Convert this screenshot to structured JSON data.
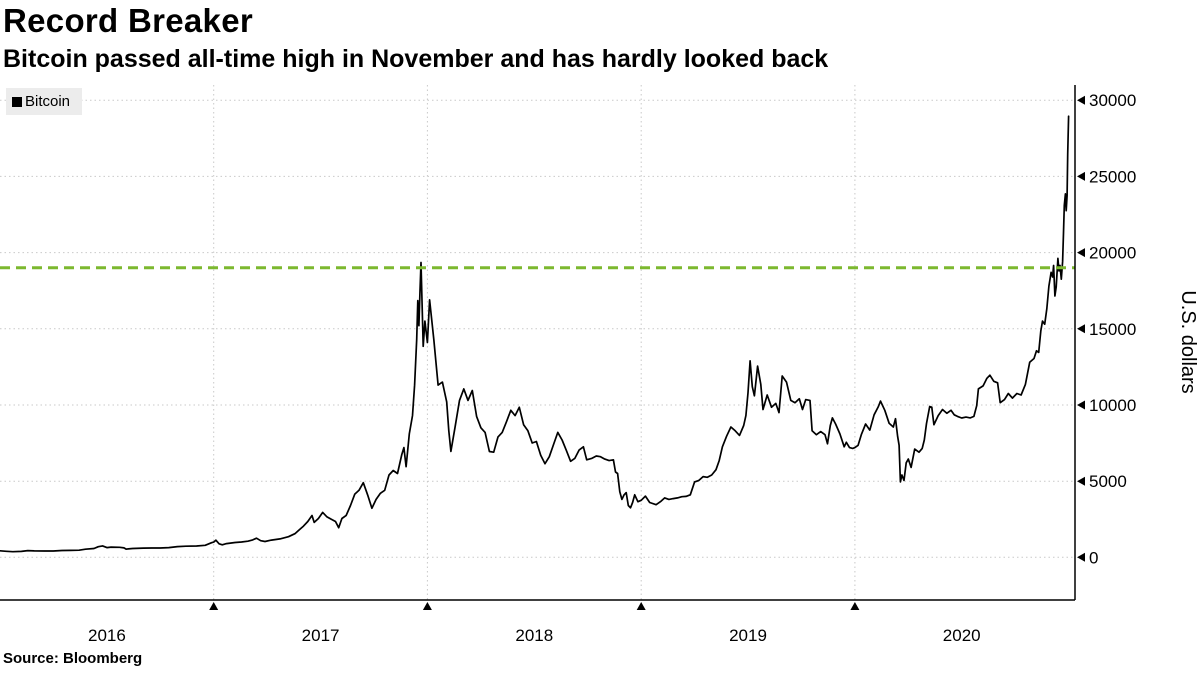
{
  "header": {
    "title": "Record Breaker",
    "subtitle": "Bitcoin passed all-time high in November and has hardly looked back"
  },
  "legend": {
    "label": "Bitcoin",
    "swatch_color": "#000000"
  },
  "source": "Source: Bloomberg",
  "chart_data": {
    "type": "line",
    "title": "Record Breaker",
    "subtitle": "Bitcoin passed all-time high in November and has hardly looked back",
    "ylabel": "U.S. dollars",
    "legend_entries": [
      "Bitcoin"
    ],
    "legend_position": "top-left",
    "grid": true,
    "grid_color": "#c9c9c9",
    "line_color": "#000000",
    "xlim": [
      2016.0,
      2021.03
    ],
    "ylim": [
      -2800,
      31000
    ],
    "y_ticks": [
      0,
      5000,
      10000,
      15000,
      20000,
      25000,
      30000
    ],
    "x_ticks": {
      "labels": [
        "2016",
        "2017",
        "2018",
        "2019",
        "2020"
      ],
      "label_positions": [
        2016.5,
        2017.5,
        2018.5,
        2019.5,
        2020.5
      ],
      "gridline_positions": [
        2017,
        2018,
        2019,
        2020
      ]
    },
    "reference_line": {
      "value": 19000,
      "color": "#7cb82f",
      "style": "dashed"
    },
    "series": [
      {
        "name": "Bitcoin",
        "points": [
          [
            2016.0,
            430
          ],
          [
            2016.03,
            395
          ],
          [
            2016.06,
            372
          ],
          [
            2016.1,
            392
          ],
          [
            2016.13,
            440
          ],
          [
            2016.16,
            420
          ],
          [
            2016.21,
            416
          ],
          [
            2016.25,
            418
          ],
          [
            2016.29,
            448
          ],
          [
            2016.33,
            455
          ],
          [
            2016.37,
            470
          ],
          [
            2016.4,
            532
          ],
          [
            2016.44,
            578
          ],
          [
            2016.46,
            700
          ],
          [
            2016.48,
            752
          ],
          [
            2016.5,
            640
          ],
          [
            2016.52,
            672
          ],
          [
            2016.56,
            658
          ],
          [
            2016.58,
            618
          ],
          [
            2016.59,
            540
          ],
          [
            2016.62,
            578
          ],
          [
            2016.67,
            607
          ],
          [
            2016.71,
            612
          ],
          [
            2016.75,
            616
          ],
          [
            2016.79,
            640
          ],
          [
            2016.83,
            702
          ],
          [
            2016.87,
            732
          ],
          [
            2016.92,
            747
          ],
          [
            2016.96,
            792
          ],
          [
            2016.99,
            962
          ],
          [
            2017.0,
            998
          ],
          [
            2017.01,
            1128
          ],
          [
            2017.025,
            888
          ],
          [
            2017.04,
            820
          ],
          [
            2017.06,
            902
          ],
          [
            2017.1,
            972
          ],
          [
            2017.13,
            1008
          ],
          [
            2017.16,
            1058
          ],
          [
            2017.18,
            1132
          ],
          [
            2017.2,
            1255
          ],
          [
            2017.22,
            1095
          ],
          [
            2017.24,
            1038
          ],
          [
            2017.27,
            1132
          ],
          [
            2017.31,
            1212
          ],
          [
            2017.35,
            1352
          ],
          [
            2017.38,
            1552
          ],
          [
            2017.4,
            1802
          ],
          [
            2017.42,
            2052
          ],
          [
            2017.44,
            2352
          ],
          [
            2017.46,
            2748
          ],
          [
            2017.47,
            2292
          ],
          [
            2017.49,
            2552
          ],
          [
            2017.51,
            2948
          ],
          [
            2017.53,
            2652
          ],
          [
            2017.55,
            2498
          ],
          [
            2017.57,
            2352
          ],
          [
            2017.585,
            1948
          ],
          [
            2017.6,
            2552
          ],
          [
            2017.62,
            2752
          ],
          [
            2017.64,
            3402
          ],
          [
            2017.66,
            4152
          ],
          [
            2017.68,
            4402
          ],
          [
            2017.7,
            4898
          ],
          [
            2017.72,
            4102
          ],
          [
            2017.74,
            3228
          ],
          [
            2017.76,
            3802
          ],
          [
            2017.78,
            4202
          ],
          [
            2017.8,
            4398
          ],
          [
            2017.82,
            5402
          ],
          [
            2017.84,
            5698
          ],
          [
            2017.86,
            5502
          ],
          [
            2017.88,
            6748
          ],
          [
            2017.89,
            7202
          ],
          [
            2017.9,
            5948
          ],
          [
            2017.915,
            8102
          ],
          [
            2017.93,
            9302
          ],
          [
            2017.94,
            11302
          ],
          [
            2017.95,
            14302
          ],
          [
            2017.955,
            16852
          ],
          [
            2017.96,
            15202
          ],
          [
            2017.965,
            17502
          ],
          [
            2017.97,
            19348
          ],
          [
            2017.975,
            16602
          ],
          [
            2017.98,
            13852
          ],
          [
            2017.988,
            15502
          ],
          [
            2018.0,
            14102
          ],
          [
            2018.01,
            16902
          ],
          [
            2018.03,
            14302
          ],
          [
            2018.05,
            11302
          ],
          [
            2018.07,
            11502
          ],
          [
            2018.09,
            10202
          ],
          [
            2018.1,
            8302
          ],
          [
            2018.11,
            6952
          ],
          [
            2018.13,
            8602
          ],
          [
            2018.15,
            10302
          ],
          [
            2018.17,
            11052
          ],
          [
            2018.19,
            10302
          ],
          [
            2018.21,
            10952
          ],
          [
            2018.23,
            9252
          ],
          [
            2018.25,
            8502
          ],
          [
            2018.27,
            8202
          ],
          [
            2018.29,
            6948
          ],
          [
            2018.31,
            6902
          ],
          [
            2018.33,
            7902
          ],
          [
            2018.35,
            8202
          ],
          [
            2018.37,
            8902
          ],
          [
            2018.39,
            9652
          ],
          [
            2018.41,
            9302
          ],
          [
            2018.43,
            9848
          ],
          [
            2018.45,
            8702
          ],
          [
            2018.47,
            8302
          ],
          [
            2018.49,
            7502
          ],
          [
            2018.51,
            7602
          ],
          [
            2018.53,
            6702
          ],
          [
            2018.55,
            6148
          ],
          [
            2018.57,
            6602
          ],
          [
            2018.59,
            7402
          ],
          [
            2018.61,
            8202
          ],
          [
            2018.63,
            7702
          ],
          [
            2018.65,
            7002
          ],
          [
            2018.67,
            6302
          ],
          [
            2018.69,
            6502
          ],
          [
            2018.71,
            7052
          ],
          [
            2018.73,
            7252
          ],
          [
            2018.745,
            6402
          ],
          [
            2018.77,
            6502
          ],
          [
            2018.79,
            6648
          ],
          [
            2018.81,
            6602
          ],
          [
            2018.83,
            6448
          ],
          [
            2018.85,
            6348
          ],
          [
            2018.87,
            6402
          ],
          [
            2018.88,
            5602
          ],
          [
            2018.89,
            5502
          ],
          [
            2018.9,
            4302
          ],
          [
            2018.91,
            3802
          ],
          [
            2018.92,
            4102
          ],
          [
            2018.93,
            4252
          ],
          [
            2018.94,
            3402
          ],
          [
            2018.95,
            3248
          ],
          [
            2018.96,
            3602
          ],
          [
            2018.97,
            4102
          ],
          [
            2018.985,
            3652
          ],
          [
            2019.0,
            3742
          ],
          [
            2019.02,
            4022
          ],
          [
            2019.04,
            3602
          ],
          [
            2019.07,
            3452
          ],
          [
            2019.09,
            3652
          ],
          [
            2019.11,
            3902
          ],
          [
            2019.13,
            3802
          ],
          [
            2019.15,
            3852
          ],
          [
            2019.17,
            3902
          ],
          [
            2019.19,
            3982
          ],
          [
            2019.21,
            4002
          ],
          [
            2019.23,
            4102
          ],
          [
            2019.25,
            4952
          ],
          [
            2019.27,
            5052
          ],
          [
            2019.29,
            5302
          ],
          [
            2019.31,
            5252
          ],
          [
            2019.33,
            5402
          ],
          [
            2019.35,
            5752
          ],
          [
            2019.365,
            6352
          ],
          [
            2019.38,
            7252
          ],
          [
            2019.4,
            7952
          ],
          [
            2019.42,
            8552
          ],
          [
            2019.44,
            8302
          ],
          [
            2019.46,
            8002
          ],
          [
            2019.48,
            8652
          ],
          [
            2019.49,
            9302
          ],
          [
            2019.5,
            10802
          ],
          [
            2019.51,
            12902
          ],
          [
            2019.52,
            11202
          ],
          [
            2019.53,
            10602
          ],
          [
            2019.545,
            12552
          ],
          [
            2019.56,
            11352
          ],
          [
            2019.57,
            9702
          ],
          [
            2019.59,
            10652
          ],
          [
            2019.61,
            9852
          ],
          [
            2019.63,
            10102
          ],
          [
            2019.645,
            9502
          ],
          [
            2019.66,
            11902
          ],
          [
            2019.68,
            11502
          ],
          [
            2019.7,
            10302
          ],
          [
            2019.72,
            10152
          ],
          [
            2019.74,
            10402
          ],
          [
            2019.755,
            9702
          ],
          [
            2019.77,
            10352
          ],
          [
            2019.79,
            10302
          ],
          [
            2019.8,
            8302
          ],
          [
            2019.82,
            8052
          ],
          [
            2019.84,
            8252
          ],
          [
            2019.86,
            8052
          ],
          [
            2019.872,
            7452
          ],
          [
            2019.885,
            8652
          ],
          [
            2019.895,
            9152
          ],
          [
            2019.91,
            8752
          ],
          [
            2019.93,
            8102
          ],
          [
            2019.95,
            7252
          ],
          [
            2019.96,
            7552
          ],
          [
            2019.975,
            7202
          ],
          [
            2019.99,
            7152
          ],
          [
            2020.0,
            7202
          ],
          [
            2020.015,
            7352
          ],
          [
            2020.03,
            8052
          ],
          [
            2020.05,
            8752
          ],
          [
            2020.07,
            8352
          ],
          [
            2020.09,
            9352
          ],
          [
            2020.11,
            9902
          ],
          [
            2020.12,
            10252
          ],
          [
            2020.14,
            9652
          ],
          [
            2020.16,
            8802
          ],
          [
            2020.18,
            8552
          ],
          [
            2020.19,
            9102
          ],
          [
            2020.2,
            7952
          ],
          [
            2020.207,
            7352
          ],
          [
            2020.213,
            4952
          ],
          [
            2020.22,
            5402
          ],
          [
            2020.23,
            5052
          ],
          [
            2020.24,
            6202
          ],
          [
            2020.25,
            6452
          ],
          [
            2020.263,
            5902
          ],
          [
            2020.28,
            7102
          ],
          [
            2020.3,
            6902
          ],
          [
            2020.315,
            7152
          ],
          [
            2020.325,
            7702
          ],
          [
            2020.335,
            8782
          ],
          [
            2020.35,
            9902
          ],
          [
            2020.36,
            9852
          ],
          [
            2020.37,
            8702
          ],
          [
            2020.39,
            9302
          ],
          [
            2020.41,
            9702
          ],
          [
            2020.43,
            9452
          ],
          [
            2020.45,
            9652
          ],
          [
            2020.465,
            9352
          ],
          [
            2020.48,
            9252
          ],
          [
            2020.5,
            9142
          ],
          [
            2020.52,
            9202
          ],
          [
            2020.54,
            9152
          ],
          [
            2020.557,
            9252
          ],
          [
            2020.57,
            9952
          ],
          [
            2020.578,
            11052
          ],
          [
            2020.6,
            11252
          ],
          [
            2020.618,
            11752
          ],
          [
            2020.632,
            11952
          ],
          [
            2020.65,
            11552
          ],
          [
            2020.668,
            11452
          ],
          [
            2020.68,
            10152
          ],
          [
            2020.7,
            10352
          ],
          [
            2020.718,
            10752
          ],
          [
            2020.737,
            10452
          ],
          [
            2020.758,
            10752
          ],
          [
            2020.778,
            10652
          ],
          [
            2020.798,
            11352
          ],
          [
            2020.818,
            12802
          ],
          [
            2020.838,
            13052
          ],
          [
            2020.85,
            13552
          ],
          [
            2020.86,
            13452
          ],
          [
            2020.87,
            14852
          ],
          [
            2020.878,
            15502
          ],
          [
            2020.888,
            15302
          ],
          [
            2020.898,
            16302
          ],
          [
            2020.908,
            17802
          ],
          [
            2020.918,
            18702
          ],
          [
            2020.925,
            18402
          ],
          [
            2020.93,
            19152
          ],
          [
            2020.936,
            17152
          ],
          [
            2020.942,
            17752
          ],
          [
            2020.95,
            19622
          ],
          [
            2020.955,
            18802
          ],
          [
            2020.96,
            19152
          ],
          [
            2020.966,
            18252
          ],
          [
            2020.972,
            19402
          ],
          [
            2020.976,
            21302
          ],
          [
            2020.98,
            23102
          ],
          [
            2020.985,
            23852
          ],
          [
            2020.989,
            22752
          ],
          [
            2020.993,
            23752
          ],
          [
            2020.996,
            26452
          ],
          [
            2021.0,
            28952
          ]
        ]
      }
    ]
  }
}
